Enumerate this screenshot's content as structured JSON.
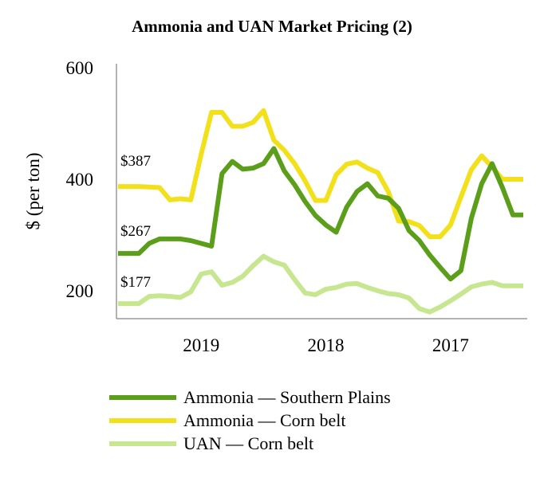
{
  "chart_data": {
    "type": "line",
    "title": "Ammonia and UAN Market Pricing (2)",
    "xlabel": "",
    "ylabel": "$ (per ton)",
    "ylim": [
      175,
      600
    ],
    "yticks": [
      200,
      400,
      600
    ],
    "x_tick_labels": [
      "2019",
      "2018",
      "2017"
    ],
    "x_index": [
      0,
      1,
      2,
      3,
      4,
      5,
      6,
      7,
      8,
      9,
      10,
      11,
      12,
      13,
      14,
      15,
      16,
      17,
      18,
      19,
      20,
      21,
      22,
      23,
      24,
      25,
      26,
      27,
      28,
      29,
      30,
      31,
      32,
      33,
      34,
      35,
      36,
      37,
      38,
      39
    ],
    "annotations": [
      "$387",
      "$267",
      "$177"
    ],
    "grid": false,
    "legend_position": "bottom",
    "series": [
      {
        "name": "Ammonia — Southern Plains",
        "color": "#5a9e1a",
        "values": [
          267,
          267,
          267,
          285,
          293,
          293,
          293,
          290,
          285,
          280,
          410,
          432,
          418,
          420,
          428,
          455,
          415,
          390,
          360,
          335,
          318,
          305,
          350,
          378,
          392,
          370,
          366,
          348,
          308,
          290,
          264,
          242,
          221,
          236,
          330,
          392,
          428,
          385,
          336,
          336
        ]
      },
      {
        "name": "Ammonia — Corn belt",
        "color": "#f2e11a",
        "values": [
          387,
          387,
          387,
          386,
          385,
          363,
          365,
          363,
          445,
          520,
          520,
          495,
          495,
          502,
          523,
          470,
          452,
          428,
          397,
          362,
          362,
          408,
          427,
          431,
          420,
          412,
          378,
          325,
          324,
          317,
          297,
          297,
          318,
          368,
          417,
          442,
          422,
          400,
          400,
          400
        ]
      },
      {
        "name": "UAN — Corn belt",
        "color": "#c6e68f",
        "values": [
          177,
          177,
          177,
          190,
          191,
          190,
          188,
          198,
          230,
          234,
          210,
          215,
          226,
          245,
          262,
          252,
          246,
          220,
          196,
          193,
          203,
          206,
          212,
          213,
          206,
          200,
          195,
          193,
          187,
          168,
          162,
          171,
          182,
          194,
          207,
          212,
          215,
          209,
          209,
          209
        ]
      }
    ]
  }
}
